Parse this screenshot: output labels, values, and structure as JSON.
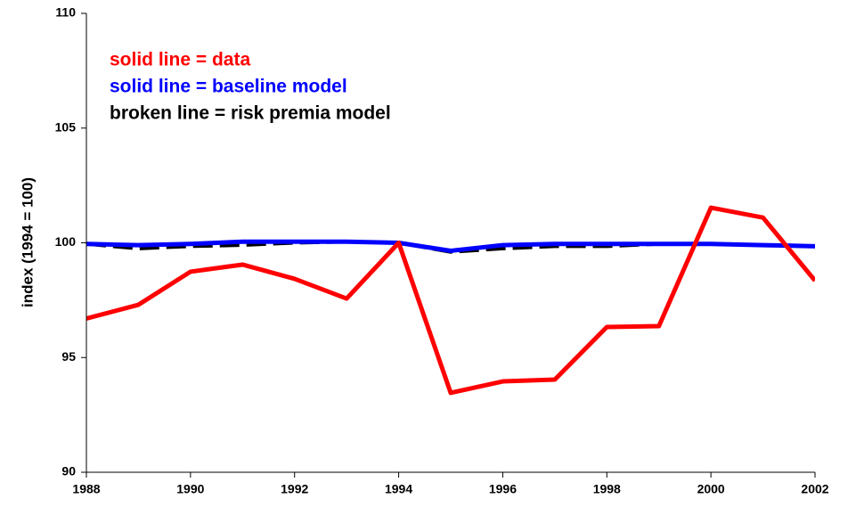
{
  "chart_data": {
    "type": "line",
    "y_label": "index (1994 = 100)",
    "annotations": [
      {
        "text": "solid line = data",
        "color": "#ff0000"
      },
      {
        "text": "solid line = baseline model",
        "color": "#0000ff"
      },
      {
        "text": "broken line = risk premia model",
        "color": "#000000"
      }
    ],
    "x": [
      1988,
      1989,
      1990,
      1991,
      1992,
      1993,
      1994,
      1995,
      1996,
      1997,
      1998,
      1999,
      2000,
      2001,
      2002
    ],
    "series": [
      {
        "name": "risk premia model",
        "color": "#000000",
        "dashed": true,
        "values": [
          99.95,
          99.75,
          99.85,
          99.9,
          100.0,
          100.05,
          100.0,
          99.6,
          99.75,
          99.85,
          99.85,
          99.95,
          99.95,
          99.9,
          99.85
        ]
      },
      {
        "name": "baseline model",
        "color": "#0000ff",
        "dashed": false,
        "values": [
          99.95,
          99.9,
          99.95,
          100.05,
          100.05,
          100.05,
          100.0,
          99.65,
          99.9,
          99.95,
          99.95,
          99.95,
          99.95,
          99.9,
          99.85
        ]
      },
      {
        "name": "data",
        "color": "#ff0000",
        "dashed": false,
        "values": [
          96.7,
          97.3,
          98.74,
          99.05,
          98.43,
          97.57,
          100.0,
          93.46,
          93.96,
          94.04,
          96.33,
          96.37,
          101.53,
          101.1,
          98.35
        ]
      }
    ],
    "xlim": [
      1988,
      2002
    ],
    "xticks": [
      1988,
      1990,
      1992,
      1994,
      1996,
      1998,
      2000,
      2002
    ],
    "ylim": [
      90,
      110
    ],
    "yticks": [
      90,
      95,
      100,
      105,
      110
    ]
  }
}
